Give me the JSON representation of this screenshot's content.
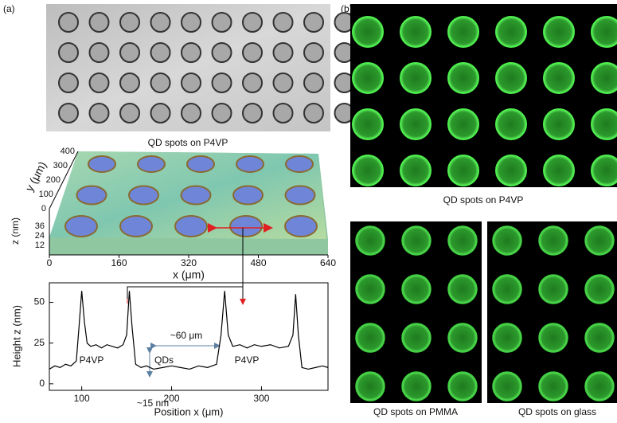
{
  "panel_labels": {
    "a": "(a)",
    "b": "(b)"
  },
  "captions": {
    "top_left": "QD spots on P4VP",
    "top_right": "QD spots on P4VP",
    "bottom_left": "QD spots on PMMA",
    "bottom_right": "QD spots on glass"
  },
  "surface_plot": {
    "xlabel": "x (μm)",
    "ylabel": "y (μm)",
    "zlabel": "z (nm)",
    "xticks": [
      0,
      160,
      320,
      480,
      640
    ],
    "yticks": [
      0,
      100,
      200,
      300,
      400
    ],
    "zticks": [
      12,
      24,
      36
    ]
  },
  "chart_data": {
    "type": "line",
    "xlabel": "Position x (μm)",
    "ylabel": "Height z (nm)",
    "x": [
      64,
      70,
      76,
      82,
      88,
      94,
      97,
      100,
      103,
      106,
      110,
      116,
      122,
      128,
      134,
      140,
      146,
      150,
      153,
      156,
      160,
      166,
      172,
      180,
      190,
      200,
      210,
      220,
      230,
      240,
      250,
      255,
      259,
      263,
      268,
      276,
      284,
      292,
      300,
      310,
      320,
      330,
      335,
      338,
      341,
      345,
      352,
      360,
      368,
      374
    ],
    "series": [
      {
        "color": "#000000",
        "values": [
          9,
          11,
          10,
          12,
          11,
          14,
          35,
          57,
          38,
          25,
          23,
          24,
          22,
          24,
          23,
          22,
          24,
          30,
          57,
          35,
          12,
          10,
          11,
          9,
          10,
          11,
          10,
          9,
          11,
          10,
          12,
          30,
          57,
          30,
          23,
          24,
          22,
          24,
          23,
          24,
          22,
          23,
          30,
          55,
          30,
          10,
          9,
          10,
          11,
          10
        ]
      }
    ],
    "xlim": [
      64,
      374
    ],
    "ylim": [
      -4,
      62
    ],
    "xticks": [
      100,
      200,
      300
    ],
    "yticks": [
      0,
      25,
      50
    ],
    "annotations": [
      "P4VP",
      "QDs",
      "P4VP",
      "~60 μm",
      "~15 nm"
    ]
  }
}
